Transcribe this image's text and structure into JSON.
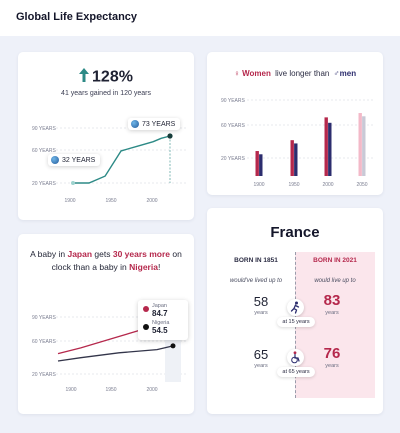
{
  "page": {
    "title": "Global Life Expectancy"
  },
  "colors": {
    "teal": "#2d8a86",
    "navy": "#2c2d6e",
    "crimson": "#b5284c",
    "pink": "#f3b9c8",
    "grid": "#cfd3de",
    "bg": "#eef1f9"
  },
  "card_gain": {
    "arrow_icon": "up-arrow-icon",
    "headline": "128%",
    "subtitle": "41 years gained in 120 years",
    "label_start": "32 YEARS",
    "label_end": "73 YEARS",
    "globe_icon": "globe-icon"
  },
  "card_gender": {
    "women_icon": "female-symbol-icon",
    "women": "Women",
    "middle": "live longer than",
    "men_icon": "male-symbol-icon",
    "men": "men"
  },
  "card_nations": {
    "text_1": "A baby in ",
    "country_a": "Japan",
    "text_2": " gets ",
    "gap": "30 years more",
    "text_3": " on clock than a baby in ",
    "country_b": "Nigeria",
    "text_4": "!",
    "legend": [
      {
        "name": "Japan",
        "value": "84.7"
      },
      {
        "name": "Nigeria",
        "value": "54.5"
      }
    ]
  },
  "card_france": {
    "title": "France",
    "left_header": "BORN IN 1851",
    "right_header": "BORN IN 2021",
    "left_caption": "would've lived up to",
    "right_caption": "would live up to",
    "rows": [
      {
        "left_value": "58",
        "left_unit": "years",
        "pill": "at 15 years",
        "right_value": "83",
        "right_unit": "years",
        "icon": "runner-icon"
      },
      {
        "left_value": "65",
        "left_unit": "years",
        "pill": "at 65 years",
        "right_value": "76",
        "right_unit": "years",
        "icon": "wheelchair-icon"
      }
    ]
  },
  "chart_data": [
    {
      "type": "line",
      "title": "",
      "x_ticks": [
        "1900",
        "1950",
        "2000"
      ],
      "y_ticks": [
        "90 YEARS",
        "60 YEARS",
        "20 YEARS"
      ],
      "xlim": [
        1880,
        2030
      ],
      "ylim": [
        20,
        90
      ],
      "series": [
        {
          "x": [
            1900,
            1920,
            1940,
            1960,
            1980,
            2000,
            2010,
            2021
          ],
          "y": [
            32,
            32,
            38,
            60,
            64,
            68,
            71,
            73
          ]
        }
      ]
    },
    {
      "type": "bar",
      "x_ticks": [
        "1900",
        "1950",
        "2000",
        "2050"
      ],
      "y_ticks": [
        "90 YEARS",
        "60 YEARS",
        "20 YEARS"
      ],
      "xlim": [
        1870,
        2065
      ],
      "ylim": [
        20,
        90
      ],
      "series": [
        {
          "name": "Women",
          "x": [
            1900,
            1950,
            2000,
            2050
          ],
          "values": [
            43,
            53,
            74,
            78
          ]
        },
        {
          "name": "men",
          "x": [
            1900,
            1950,
            2000,
            2050
          ],
          "values": [
            40,
            50,
            69,
            75
          ]
        }
      ]
    },
    {
      "type": "line",
      "x_ticks": [
        "1900",
        "1950",
        "2000"
      ],
      "y_ticks": [
        "90 YEARS",
        "60 YEARS",
        "20 YEARS"
      ],
      "xlim": [
        1870,
        2040
      ],
      "ylim": [
        20,
        90
      ],
      "series": [
        {
          "name": "Japan",
          "x": [
            1870,
            1900,
            1950,
            2000,
            2021
          ],
          "y": [
            45,
            52,
            66,
            80,
            84.7
          ]
        },
        {
          "name": "Nigeria",
          "x": [
            1870,
            1900,
            1950,
            2000,
            2021
          ],
          "y": [
            36,
            40,
            46,
            50,
            54.5
          ]
        }
      ]
    }
  ]
}
